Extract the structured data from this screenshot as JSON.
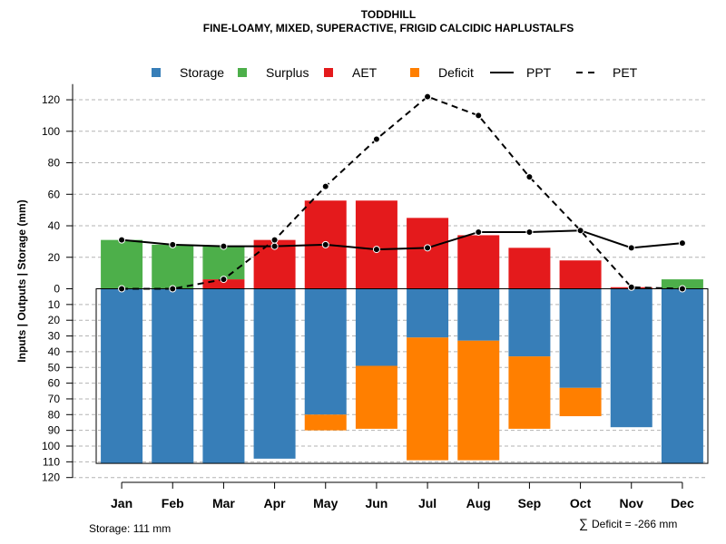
{
  "chart_data": {
    "type": "bar",
    "title": "TODDHILL",
    "subtitle": "FINE-LOAMY, MIXED, SUPERACTIVE, FRIGID CALCIDIC HAPLUSTALFS",
    "ylabel": "Inputs | Outputs | Storage    (mm)",
    "ylim": [
      -120,
      130
    ],
    "yticks_positive": [
      20,
      40,
      60,
      80,
      100,
      120
    ],
    "yticks_negative": [
      0,
      10,
      20,
      30,
      40,
      50,
      60,
      70,
      80,
      90,
      100,
      110,
      120
    ],
    "categories": [
      "Jan",
      "Feb",
      "Mar",
      "Apr",
      "May",
      "Jun",
      "Jul",
      "Aug",
      "Sep",
      "Oct",
      "Nov",
      "Dec"
    ],
    "legend": {
      "placement": "top",
      "items": [
        {
          "label": "Storage",
          "kind": "square",
          "color": "#377EB8"
        },
        {
          "label": "Surplus",
          "kind": "square",
          "color": "#4DAF4A"
        },
        {
          "label": "AET",
          "kind": "square",
          "color": "#E41A1C"
        },
        {
          "label": "Deficit",
          "kind": "square",
          "color": "#FF7F00"
        },
        {
          "label": "PPT",
          "kind": "solid-line",
          "color": "#000000"
        },
        {
          "label": "PET",
          "kind": "dashed-line",
          "color": "#000000"
        }
      ]
    },
    "positive_series": [
      {
        "name": "AET",
        "color": "#E41A1C",
        "values": [
          0,
          0,
          6,
          31,
          56,
          56,
          45,
          34,
          26,
          18,
          1,
          0
        ]
      },
      {
        "name": "Surplus",
        "color": "#4DAF4A",
        "values": [
          31,
          28,
          21,
          0,
          0,
          0,
          0,
          0,
          0,
          0,
          0,
          6
        ]
      }
    ],
    "negative_series": [
      {
        "name": "Storage",
        "color": "#377EB8",
        "values": [
          111,
          111,
          111,
          108,
          80,
          49,
          31,
          33,
          43,
          63,
          88,
          111
        ]
      },
      {
        "name": "Deficit",
        "color": "#FF7F00",
        "values": [
          0,
          0,
          0,
          0,
          10,
          40,
          78,
          76,
          46,
          18,
          0,
          0
        ]
      }
    ],
    "lines": [
      {
        "name": "PPT",
        "style": "solid",
        "values": [
          31,
          28,
          27,
          27,
          28,
          25,
          26,
          36,
          36,
          37,
          26,
          29
        ]
      },
      {
        "name": "PET",
        "style": "dashed",
        "values": [
          0,
          0,
          6,
          31,
          65,
          95,
          122,
          110,
          71,
          37,
          1,
          0
        ]
      }
    ],
    "storage_capacity": 111
  },
  "footer": {
    "storage_note": "Storage: 111 mm",
    "deficit_symbol": "∑",
    "deficit_note": "Deficit = -266 mm"
  }
}
